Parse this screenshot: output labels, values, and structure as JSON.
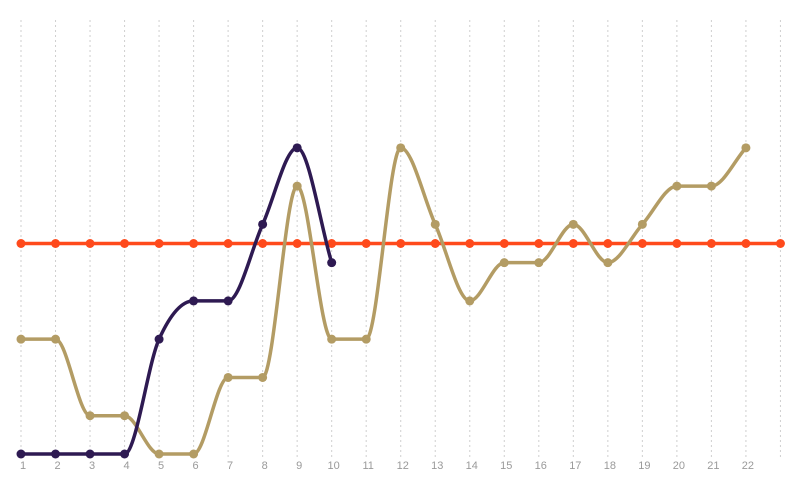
{
  "chart_data": {
    "type": "line",
    "categories": [
      "1",
      "2",
      "3",
      "4",
      "5",
      "6",
      "7",
      "8",
      "9",
      "10",
      "11",
      "12",
      "13",
      "14",
      "15",
      "16",
      "17",
      "18",
      "19",
      "20",
      "21",
      "22",
      null
    ],
    "series": [
      {
        "color": "#ff4a1c",
        "values": [
          5.5,
          5.5,
          5.5,
          5.5,
          5.5,
          5.5,
          5.5,
          5.5,
          5.5,
          5.5,
          5.5,
          5.5,
          5.5,
          5.5,
          5.5,
          5.5,
          5.5,
          5.5,
          5.5,
          5.5,
          5.5,
          5.5,
          5.5
        ]
      },
      {
        "color": "#b39c64",
        "values": [
          3,
          3,
          1,
          1,
          0,
          0,
          2,
          2,
          7,
          3,
          3,
          8,
          6,
          4,
          5,
          5,
          6,
          5,
          6,
          7,
          7,
          8,
          null
        ]
      },
      {
        "color": "#2e1a52",
        "values": [
          0,
          0,
          0,
          0,
          3,
          4,
          4,
          6,
          8,
          5,
          null,
          null,
          null,
          null,
          null,
          null,
          null,
          null,
          null,
          null,
          null,
          null,
          null
        ]
      }
    ],
    "ylim": [
      0,
      11
    ],
    "grid": true,
    "smooth": true
  }
}
